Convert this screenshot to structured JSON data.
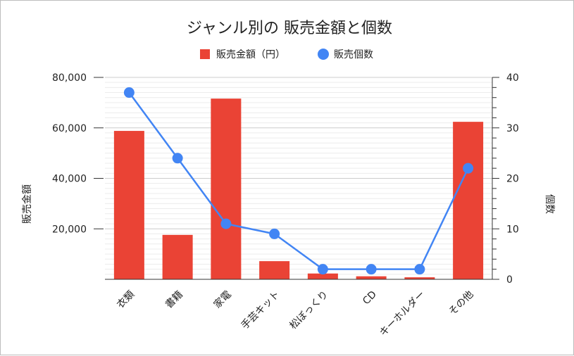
{
  "chart_data": {
    "type": "bar",
    "title": "ジャンル別の 販売金額と個数",
    "categories": [
      "衣類",
      "書籍",
      "家電",
      "手芸キット",
      "松ぼっくり",
      "CD",
      "キーホルダー",
      "その他"
    ],
    "series": [
      {
        "name": "販売金額（円）",
        "type": "bar",
        "axis": "left",
        "color": "#ea4335",
        "values": [
          58800,
          17600,
          71600,
          7200,
          2300,
          1200,
          800,
          62400
        ]
      },
      {
        "name": "販売個数",
        "type": "line",
        "axis": "right",
        "color": "#4285f4",
        "values": [
          37,
          24,
          11,
          9,
          2,
          2,
          2,
          22
        ]
      }
    ],
    "ylabel": "販売金額",
    "y2label": "個数",
    "ylim": [
      0,
      80000
    ],
    "y2lim": [
      0,
      40
    ],
    "yticks": [
      "80,000",
      "60,000",
      "40,000",
      "20,000"
    ],
    "y2ticks": [
      "40",
      "30",
      "20",
      "10",
      "0"
    ],
    "legend_position": "top",
    "grid": true
  }
}
